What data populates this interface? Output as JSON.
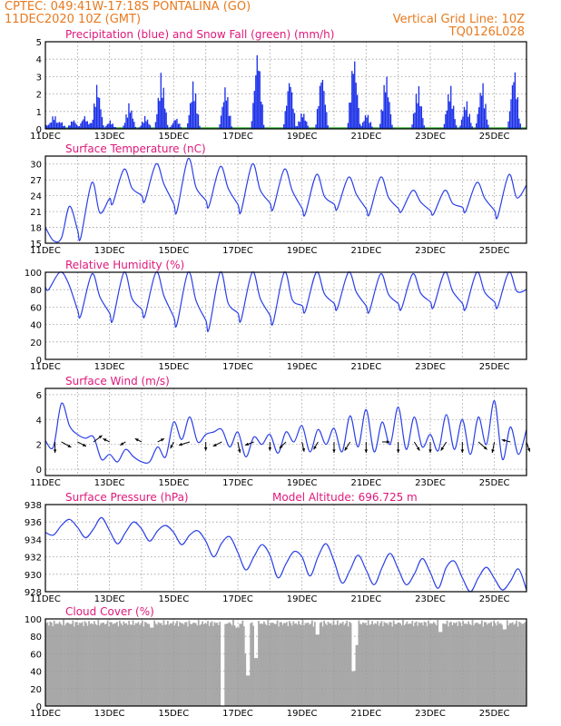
{
  "header": {
    "line1": "CPTEC:   049:41W-17:18S   PONTALINA (GO)",
    "line2": "11DEC2020 10Z (GMT)",
    "vgrid": "Vertical Grid Line: 10Z",
    "code": "TQ0126L028"
  },
  "colors": {
    "header": "#e87a1e",
    "title": "#e0187a",
    "line": "#2a3fe8",
    "bar": "#1a2fe8",
    "snow": "#16a516",
    "cloud": "#a8a8a8"
  },
  "x_axis": {
    "date_ticks": [
      "11DEC",
      "13DEC",
      "15DEC",
      "17DEC",
      "19DEC",
      "21DEC",
      "23DEC",
      "25DEC"
    ],
    "start_day": 11,
    "end_day": 26,
    "hours_per_grid": 24
  },
  "chart_data": [
    {
      "type": "bar",
      "title": "Precipitation (blue) and Snow Fall (green) (mm/h)",
      "ylim": [
        0,
        5
      ],
      "yticks": [
        "0",
        "1",
        "2",
        "3",
        "4",
        "5"
      ],
      "series": [
        {
          "name": "Precipitation",
          "color": "#1a2fe8",
          "peaks": [
            {
              "day": 11.05,
              "value": 0.3
            },
            {
              "day": 11.25,
              "value": 0.9
            },
            {
              "day": 11.45,
              "value": 0.5
            },
            {
              "day": 11.85,
              "value": 0.6
            },
            {
              "day": 12.2,
              "value": 0.8
            },
            {
              "day": 12.35,
              "value": 0.4
            },
            {
              "day": 12.6,
              "value": 2.8
            },
            {
              "day": 13.0,
              "value": 0.5
            },
            {
              "day": 13.6,
              "value": 1.6
            },
            {
              "day": 14.1,
              "value": 0.8
            },
            {
              "day": 14.6,
              "value": 3.5
            },
            {
              "day": 15.05,
              "value": 0.7
            },
            {
              "day": 15.6,
              "value": 3.0
            },
            {
              "day": 16.6,
              "value": 2.7
            },
            {
              "day": 17.6,
              "value": 5.0
            },
            {
              "day": 18.6,
              "value": 3.3
            },
            {
              "day": 19.0,
              "value": 1.1
            },
            {
              "day": 19.6,
              "value": 3.6
            },
            {
              "day": 20.6,
              "value": 4.7
            },
            {
              "day": 21.0,
              "value": 1.0
            },
            {
              "day": 21.6,
              "value": 3.5
            },
            {
              "day": 22.6,
              "value": 2.8
            },
            {
              "day": 23.6,
              "value": 2.8
            },
            {
              "day": 24.1,
              "value": 1.8
            },
            {
              "day": 24.6,
              "value": 3.0
            },
            {
              "day": 25.6,
              "value": 3.8
            }
          ]
        },
        {
          "name": "Snow Fall",
          "color": "#16a516",
          "values": "0"
        }
      ]
    },
    {
      "type": "line",
      "title": "Surface Temperature (nC)",
      "ylim": [
        15,
        31.5
      ],
      "yticks": [
        "15",
        "18",
        "21",
        "24",
        "27",
        "30"
      ],
      "daily_min": [
        18.0,
        16.0,
        22.5,
        23.0,
        21.0,
        22.0,
        21.0,
        21.5,
        20.5,
        21.5,
        20.5,
        21.0,
        20.5,
        21.0,
        20.0,
        20.5
      ],
      "daily_max": [
        null,
        26.5,
        29.0,
        30.0,
        31.0,
        29.5,
        30.0,
        29.0,
        28.0,
        27.5,
        27.5,
        25.0,
        25.0,
        26.5,
        28.0,
        29.0
      ],
      "end_value": 26.0
    },
    {
      "type": "line",
      "title": "Relative Humidity (%)",
      "ylim": [
        0,
        100
      ],
      "yticks": [
        "0",
        "20",
        "40",
        "60",
        "80",
        "100"
      ],
      "daily_min": [
        80,
        50,
        45,
        50,
        40,
        35,
        45,
        42,
        55,
        58,
        55,
        58,
        60,
        58,
        60,
        50
      ],
      "daily_max": [
        100,
        98,
        100,
        100,
        100,
        100,
        100,
        100,
        100,
        100,
        98,
        98,
        100,
        100,
        100,
        100
      ],
      "end_value": 80
    },
    {
      "type": "line",
      "title": "Surface Wind (m/s)",
      "ylim": [
        -0.5,
        6.5
      ],
      "yticks": [
        "0",
        "2",
        "4",
        "6"
      ],
      "values_6h": [
        2.3,
        1.8,
        5.3,
        3.5,
        2.8,
        2.5,
        2.6,
        0.8,
        1.2,
        0.6,
        1.6,
        1.0,
        0.6,
        0.6,
        1.8,
        1.0,
        3.8,
        2.4,
        4.2,
        2.2,
        2.8,
        3.0,
        3.2,
        1.8,
        3.0,
        1.0,
        2.6,
        2.0,
        2.8,
        1.3,
        3.0,
        2.2,
        3.5,
        1.4,
        3.2,
        2.0,
        3.3,
        1.4,
        4.3,
        1.8,
        4.8,
        1.4,
        3.8,
        2.0,
        5.0,
        1.6,
        4.2,
        1.8,
        2.8,
        1.5,
        4.4,
        1.6,
        4.0,
        1.2,
        4.2,
        2.0,
        5.5,
        0.8,
        3.4,
        1.2,
        3.2
      ],
      "vectors": [
        {
          "day": 11.3,
          "u": 0.0,
          "v": -1.0
        },
        {
          "day": 11.5,
          "u": 0.9,
          "v": -0.5
        },
        {
          "day": 12.0,
          "u": 0.8,
          "v": -0.4
        },
        {
          "day": 12.5,
          "u": 0.8,
          "v": 0.6
        },
        {
          "day": 13.0,
          "u": -0.6,
          "v": 0.3
        },
        {
          "day": 13.5,
          "u": -0.5,
          "v": -0.3
        },
        {
          "day": 14.0,
          "u": -0.6,
          "v": 0.3
        },
        {
          "day": 14.5,
          "u": 0.6,
          "v": 0.3
        },
        {
          "day": 15.0,
          "u": -0.3,
          "v": -0.6
        },
        {
          "day": 15.5,
          "u": -1.0,
          "v": -0.3
        },
        {
          "day": 16.0,
          "u": 0.0,
          "v": -0.8
        },
        {
          "day": 16.5,
          "u": -0.8,
          "v": -0.4
        },
        {
          "day": 17.0,
          "u": 0.2,
          "v": -1.0
        },
        {
          "day": 17.5,
          "u": -0.8,
          "v": -0.3
        },
        {
          "day": 18.0,
          "u": 0.0,
          "v": -0.8
        },
        {
          "day": 18.5,
          "u": -0.6,
          "v": -0.6
        },
        {
          "day": 19.0,
          "u": 0.2,
          "v": -0.9
        },
        {
          "day": 19.5,
          "u": -0.4,
          "v": -0.7
        },
        {
          "day": 20.0,
          "u": 0.0,
          "v": -1.0
        },
        {
          "day": 20.5,
          "u": -0.5,
          "v": -0.8
        },
        {
          "day": 21.0,
          "u": 0.0,
          "v": -1.0
        },
        {
          "day": 21.5,
          "u": 0.7,
          "v": 0.0
        },
        {
          "day": 22.0,
          "u": 0.0,
          "v": -1.0
        },
        {
          "day": 22.5,
          "u": 0.5,
          "v": -0.8
        },
        {
          "day": 23.0,
          "u": 0.0,
          "v": -1.0
        },
        {
          "day": 23.5,
          "u": -0.5,
          "v": -0.8
        },
        {
          "day": 24.0,
          "u": 0.0,
          "v": -1.0
        },
        {
          "day": 24.5,
          "u": 0.8,
          "v": -0.7
        },
        {
          "day": 25.0,
          "u": -0.2,
          "v": -1.0
        },
        {
          "day": 25.5,
          "u": -0.8,
          "v": 0.2
        },
        {
          "day": 26.0,
          "u": 0.3,
          "v": -0.9
        }
      ]
    },
    {
      "type": "line",
      "title": "Surface Pressure (hPa)",
      "annotation": "Model Altitude: 696.725  m",
      "ylim": [
        928,
        938
      ],
      "yticks": [
        "928",
        "930",
        "932",
        "934",
        "936",
        "938"
      ],
      "values_6h": [
        934.8,
        934.5,
        935.6,
        936.3,
        935.4,
        934.2,
        935.2,
        936.5,
        935.0,
        933.5,
        934.8,
        936.0,
        935.2,
        933.8,
        935.0,
        935.6,
        934.8,
        933.4,
        934.5,
        935.0,
        933.8,
        932.0,
        933.6,
        934.3,
        932.5,
        930.5,
        932.0,
        933.4,
        932.2,
        929.6,
        931.2,
        932.6,
        932.0,
        929.8,
        932.0,
        933.5,
        931.5,
        929.0,
        930.5,
        932.2,
        930.5,
        928.8,
        930.8,
        932.4,
        930.6,
        928.8,
        930.0,
        931.8,
        930.2,
        928.4,
        930.8,
        931.5,
        929.6,
        928.0,
        929.6,
        930.8,
        929.5,
        928.2,
        929.2,
        930.6,
        928.2
      ]
    },
    {
      "type": "area",
      "title": "Cloud Cover (%)",
      "ylim": [
        0,
        100
      ],
      "yticks": [
        "0",
        "20",
        "40",
        "60",
        "80",
        "100"
      ],
      "typical_value": 95,
      "dips": [
        {
          "day": 14.3,
          "value": 90
        },
        {
          "day": 16.5,
          "value": 0
        },
        {
          "day": 16.95,
          "value": 90
        },
        {
          "day": 17.25,
          "value": 60
        },
        {
          "day": 17.3,
          "value": 35
        },
        {
          "day": 17.55,
          "value": 55
        },
        {
          "day": 19.45,
          "value": 82
        },
        {
          "day": 20.6,
          "value": 40
        },
        {
          "day": 20.65,
          "value": 70
        },
        {
          "day": 23.3,
          "value": 85
        },
        {
          "day": 25.3,
          "value": 88
        }
      ]
    }
  ]
}
